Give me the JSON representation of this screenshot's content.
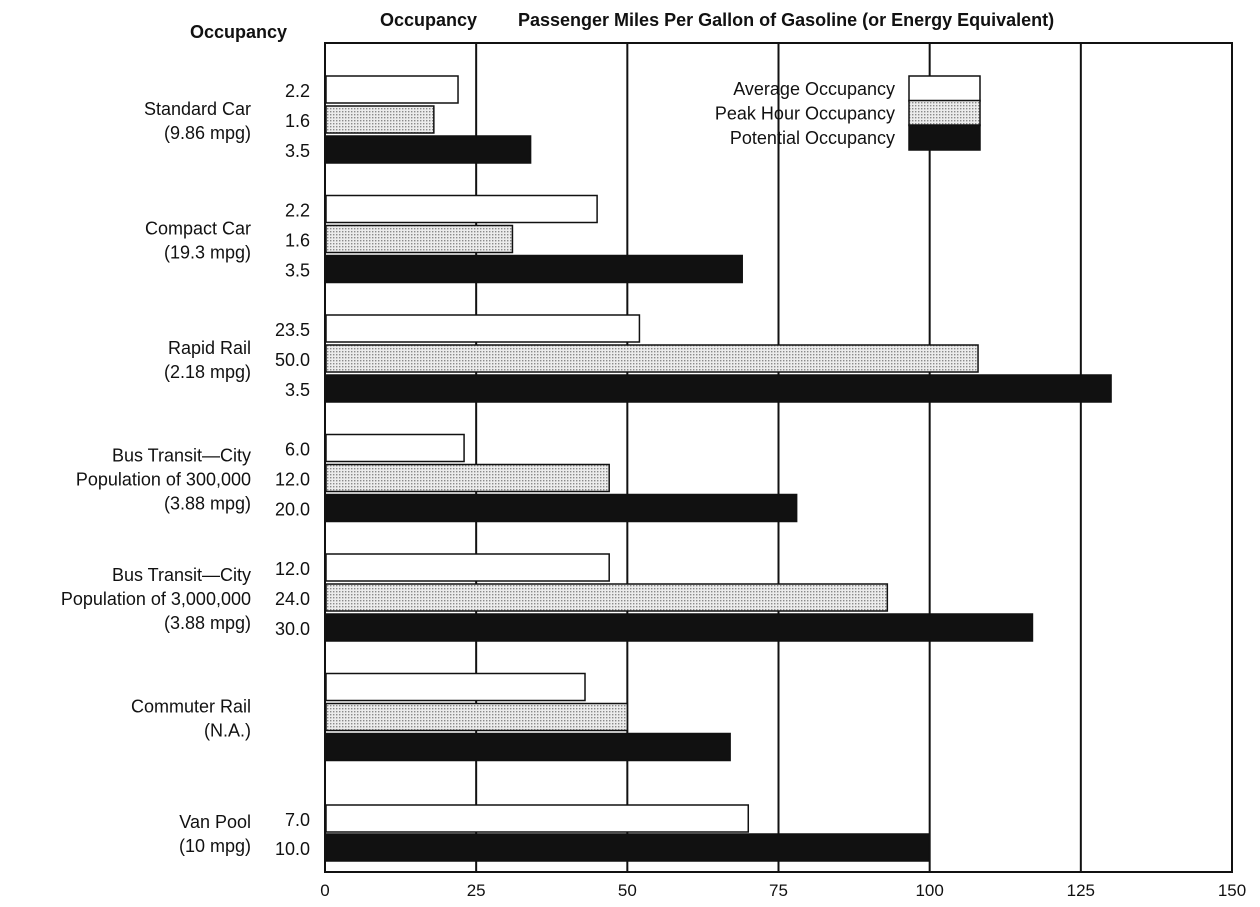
{
  "chart_data": {
    "type": "bar",
    "orientation": "horizontal",
    "title": "Passenger Miles Per Gallon of Gasoline (or Energy Equivalent)",
    "left_header": "Occupancy",
    "mid_header": "Occupancy",
    "xlim": [
      0,
      150
    ],
    "xticks": [
      0,
      25,
      50,
      75,
      100,
      125,
      150
    ],
    "grid": "vertical",
    "legend_position": "top-right",
    "series": [
      {
        "name": "Average Occupancy",
        "key": "average",
        "fill": "#ffffff"
      },
      {
        "name": "Peak Hour Occupancy",
        "key": "peak",
        "fill": "#d6d6d6"
      },
      {
        "name": "Potential Occupancy",
        "key": "potential",
        "fill": "#111111"
      }
    ],
    "categories": [
      {
        "label_lines": [
          "Standard Car",
          "(9.86 mpg)"
        ],
        "bars": [
          {
            "series": "average",
            "occupancy": "2.2",
            "value": 22
          },
          {
            "series": "peak",
            "occupancy": "1.6",
            "value": 18
          },
          {
            "series": "potential",
            "occupancy": "3.5",
            "value": 34
          }
        ]
      },
      {
        "label_lines": [
          "Compact Car",
          "(19.3 mpg)"
        ],
        "bars": [
          {
            "series": "average",
            "occupancy": "2.2",
            "value": 45
          },
          {
            "series": "peak",
            "occupancy": "1.6",
            "value": 31
          },
          {
            "series": "potential",
            "occupancy": "3.5",
            "value": 69
          }
        ]
      },
      {
        "label_lines": [
          "Rapid Rail",
          "(2.18 mpg)"
        ],
        "bars": [
          {
            "series": "average",
            "occupancy": "23.5",
            "value": 52
          },
          {
            "series": "peak",
            "occupancy": "50.0",
            "value": 108
          },
          {
            "series": "potential",
            "occupancy": "3.5",
            "value": 130
          }
        ]
      },
      {
        "label_lines": [
          "Bus Transit—City",
          "Population of 300,000",
          "(3.88 mpg)"
        ],
        "bars": [
          {
            "series": "average",
            "occupancy": "6.0",
            "value": 23
          },
          {
            "series": "peak",
            "occupancy": "12.0",
            "value": 47
          },
          {
            "series": "potential",
            "occupancy": "20.0",
            "value": 78
          }
        ]
      },
      {
        "label_lines": [
          "Bus Transit—City",
          "Population of 3,000,000",
          "(3.88 mpg)"
        ],
        "bars": [
          {
            "series": "average",
            "occupancy": "12.0",
            "value": 47
          },
          {
            "series": "peak",
            "occupancy": "24.0",
            "value": 93
          },
          {
            "series": "potential",
            "occupancy": "30.0",
            "value": 117
          }
        ]
      },
      {
        "label_lines": [
          "Commuter Rail",
          "(N.A.)"
        ],
        "bars": [
          {
            "series": "average",
            "occupancy": "",
            "value": 43
          },
          {
            "series": "peak",
            "occupancy": "",
            "value": 50
          },
          {
            "series": "potential",
            "occupancy": "",
            "value": 67
          }
        ]
      },
      {
        "label_lines": [
          "Van Pool",
          "(10 mpg)"
        ],
        "bars": [
          {
            "series": "average",
            "occupancy": "7.0",
            "value": 70
          },
          {
            "series": "potential",
            "occupancy": "10.0",
            "value": 100
          }
        ]
      }
    ]
  }
}
